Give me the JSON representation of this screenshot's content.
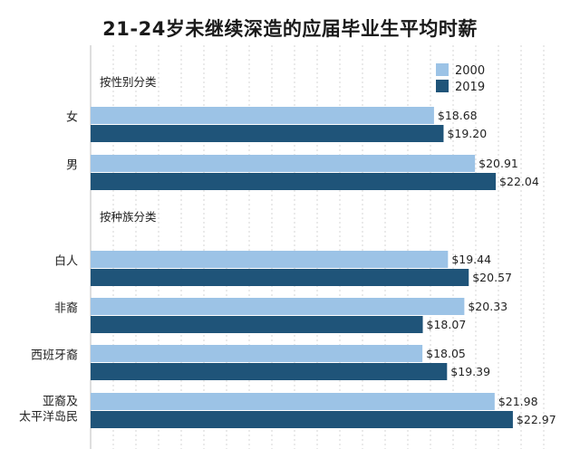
{
  "chart_data": {
    "type": "bar",
    "orientation": "horizontal",
    "title": "21-24岁未继续深造的应届毕业生平均时薪",
    "legend": {
      "placement": "top-right"
    },
    "series": [
      {
        "name": "2000",
        "color": "#9cc3e6"
      },
      {
        "name": "2019",
        "color": "#1f5479"
      }
    ],
    "groups": [
      {
        "section_title": "按性别分类",
        "categories": [
          {
            "label": "女",
            "values": [
              18.68,
              19.2
            ],
            "value_labels": [
              "$18.68",
              "$19.20"
            ]
          },
          {
            "label": "男",
            "values": [
              20.91,
              22.04
            ],
            "value_labels": [
              "$20.91",
              "$22.04"
            ]
          }
        ]
      },
      {
        "section_title": "按种族分类",
        "categories": [
          {
            "label": "白人",
            "values": [
              19.44,
              20.57
            ],
            "value_labels": [
              "$19.44",
              "$20.57"
            ]
          },
          {
            "label": "非裔",
            "values": [
              20.33,
              18.07
            ],
            "value_labels": [
              "$20.33",
              "$18.07"
            ]
          },
          {
            "label": "西班牙裔",
            "values": [
              18.05,
              19.39
            ],
            "value_labels": [
              "$18.05",
              "$19.39"
            ]
          },
          {
            "label": "亚裔及太平洋岛民",
            "label_lines": [
              "亚裔及",
              "太平洋岛民"
            ],
            "values": [
              21.98,
              22.97
            ],
            "value_labels": [
              "$21.98",
              "$22.97"
            ]
          }
        ]
      }
    ],
    "xlim": [
      0,
      24.65
    ],
    "grid": true
  }
}
